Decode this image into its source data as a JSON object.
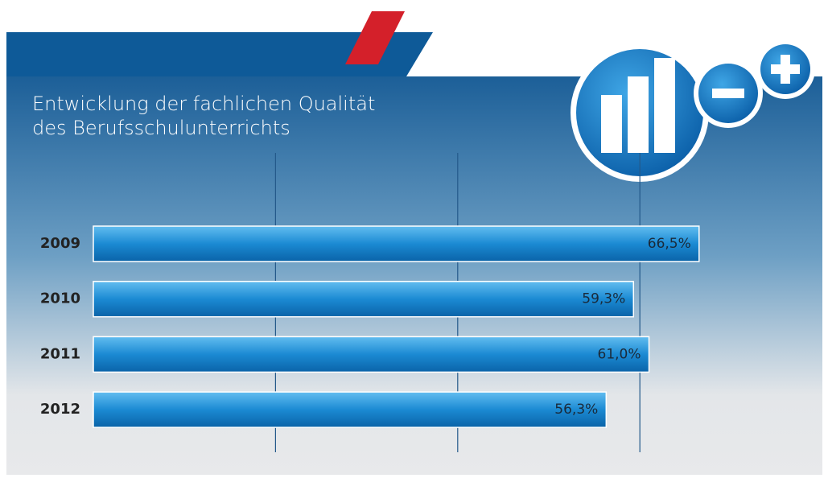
{
  "chart_data": {
    "type": "hbar",
    "title": [
      "Entwicklung der fachlichen Qualität",
      "des Berufsschulunterrichts"
    ],
    "categories": [
      "2009",
      "2010",
      "2011",
      "2012"
    ],
    "values": [
      66.5,
      59.3,
      61.0,
      56.3
    ],
    "value_labels": [
      "66,5%",
      "59,3%",
      "61,0%",
      "56,3%"
    ],
    "xlim": [
      0,
      80
    ],
    "xticks": [
      20,
      40,
      60
    ],
    "grid": true
  }
}
